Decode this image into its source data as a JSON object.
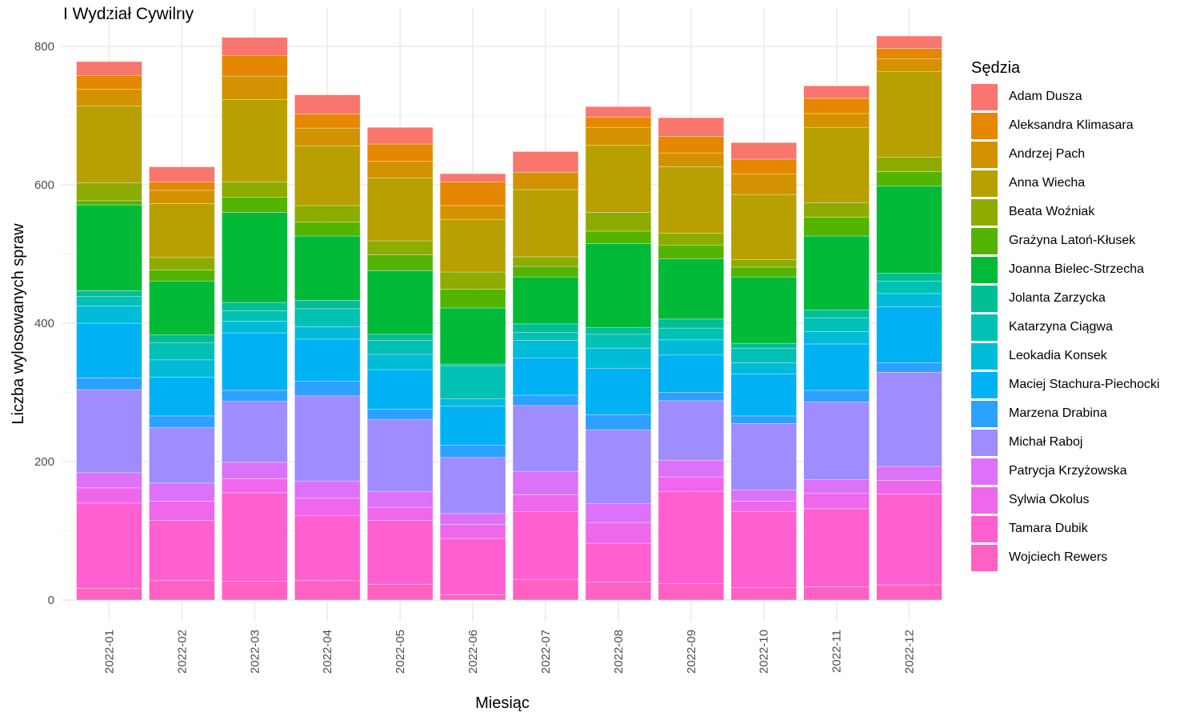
{
  "chart_data": {
    "type": "bar",
    "stacked": true,
    "title": "I Wydział Cywilny",
    "xlabel": "Miesiąc",
    "ylabel": "Liczba wylosowanych spraw",
    "ylim": [
      0,
      830
    ],
    "yticks": [
      0,
      200,
      400,
      600,
      800
    ],
    "grid": true,
    "legend_title": "Sędzia",
    "legend_position": "right",
    "categories": [
      "2022-01",
      "2022-02",
      "2022-03",
      "2022-04",
      "2022-05",
      "2022-06",
      "2022-07",
      "2022-08",
      "2022-09",
      "2022-10",
      "2022-11",
      "2022-12"
    ],
    "series": [
      {
        "name": "Wojciech Rewers",
        "color": "#FF61C3",
        "values": [
          17,
          28,
          27,
          28,
          23,
          8,
          30,
          26,
          24,
          18,
          19,
          22
        ]
      },
      {
        "name": "Tamara Dubik",
        "color": "#FF5FD0",
        "values": [
          123,
          87,
          128,
          94,
          92,
          81,
          98,
          56,
          133,
          110,
          113,
          131
        ]
      },
      {
        "name": "Sylwia Okolus",
        "color": "#EF67EB",
        "values": [
          22,
          28,
          20,
          25,
          19,
          20,
          24,
          30,
          21,
          15,
          22,
          20
        ]
      },
      {
        "name": "Patrycja Krzyżowska",
        "color": "#DC71FA",
        "values": [
          22,
          26,
          24,
          25,
          23,
          16,
          34,
          27,
          24,
          16,
          20,
          20
        ]
      },
      {
        "name": "Michał Raboj",
        "color": "#9F8CFF",
        "values": [
          120,
          80,
          88,
          123,
          104,
          81,
          95,
          107,
          86,
          96,
          112,
          136
        ]
      },
      {
        "name": "Marzena Drabina",
        "color": "#2DA1FF",
        "values": [
          17,
          17,
          16,
          21,
          15,
          18,
          15,
          22,
          12,
          11,
          17,
          14
        ]
      },
      {
        "name": "Maciej Stachura-Piechocki",
        "color": "#00B2F3",
        "values": [
          79,
          56,
          83,
          61,
          57,
          56,
          54,
          67,
          54,
          61,
          67,
          81
        ]
      },
      {
        "name": "Leokadia Konsek",
        "color": "#00BCD8",
        "values": [
          25,
          25,
          17,
          18,
          22,
          11,
          25,
          29,
          22,
          16,
          18,
          19
        ]
      },
      {
        "name": "Katarzyna Ciągwa",
        "color": "#00C1B4",
        "values": [
          14,
          25,
          15,
          26,
          20,
          47,
          12,
          20,
          17,
          21,
          20,
          18
        ]
      },
      {
        "name": "Jolanta Zarzycka",
        "color": "#00BF95",
        "values": [
          8,
          11,
          12,
          12,
          9,
          3,
          12,
          10,
          13,
          7,
          11,
          11
        ]
      },
      {
        "name": "Joanna Bielec-Strzecha",
        "color": "#00BA38",
        "values": [
          124,
          78,
          130,
          93,
          92,
          81,
          68,
          121,
          87,
          96,
          107,
          126
        ]
      },
      {
        "name": "Grażyna Latoń-Kłusek",
        "color": "#53B400",
        "values": [
          6,
          16,
          22,
          20,
          23,
          27,
          15,
          18,
          20,
          14,
          27,
          21
        ]
      },
      {
        "name": "Beata Woźniak",
        "color": "#8EAB00",
        "values": [
          26,
          18,
          22,
          24,
          20,
          25,
          14,
          27,
          17,
          11,
          21,
          21
        ]
      },
      {
        "name": "Anna Wiecha",
        "color": "#B8A000",
        "values": [
          111,
          78,
          119,
          86,
          91,
          76,
          97,
          97,
          96,
          94,
          109,
          124
        ]
      },
      {
        "name": "Andrzej Pach",
        "color": "#D39200",
        "values": [
          24,
          19,
          34,
          26,
          24,
          20,
          25,
          26,
          20,
          30,
          20,
          18
        ]
      },
      {
        "name": "Aleksandra Klimasara",
        "color": "#E58700",
        "values": [
          20,
          12,
          30,
          20,
          25,
          34,
          0,
          15,
          24,
          21,
          22,
          15
        ]
      },
      {
        "name": "Adam Dusza",
        "color": "#F8766D",
        "values": [
          20,
          22,
          26,
          28,
          24,
          12,
          30,
          15,
          27,
          24,
          18,
          18
        ]
      }
    ]
  }
}
